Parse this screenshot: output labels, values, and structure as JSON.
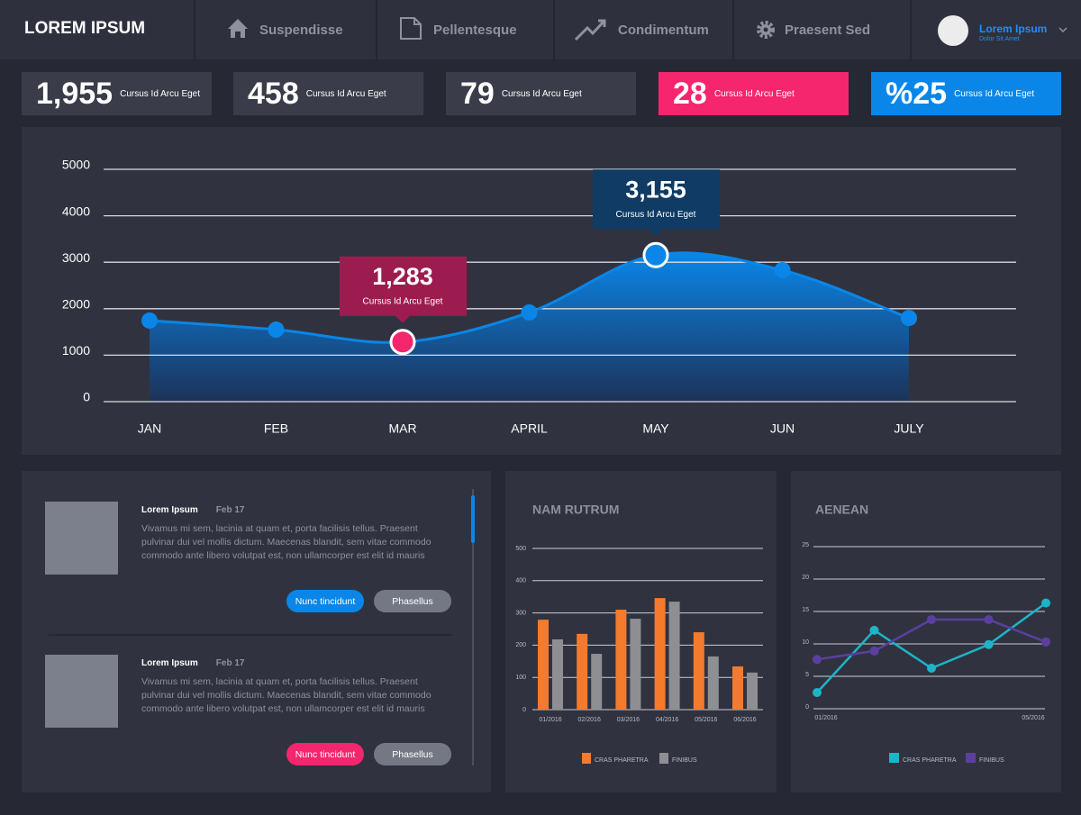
{
  "header": {
    "title": "LOREM IPSUM",
    "nav": [
      "Suspendisse",
      "Pellentesque",
      "Condimentum",
      "Praesent Sed"
    ],
    "user": {
      "name": "Lorem Ipsum",
      "subtitle": "Dolor Sit Amet"
    }
  },
  "stats": [
    {
      "value": "1,955",
      "label": "Cursus Id Arcu Eget"
    },
    {
      "value": "458",
      "label": "Cursus Id Arcu Eget"
    },
    {
      "value": "79",
      "label": "Cursus Id Arcu Eget"
    },
    {
      "value": "28",
      "label": "Cursus Id Arcu Eget"
    },
    {
      "value": "%25",
      "label": "Cursus Id Arcu Eget"
    }
  ],
  "chart_data": [
    {
      "type": "area",
      "categories": [
        "JAN",
        "FEB",
        "MAR",
        "APRIL",
        "MAY",
        "JUN",
        "JULY"
      ],
      "values": [
        1745,
        1550,
        1283,
        1920,
        3155,
        2830,
        1800
      ],
      "value_labels": [
        null,
        null,
        "1,283",
        null,
        "3,155",
        null,
        null
      ],
      "callout_text": "Cursus Id Arcu Eget",
      "callout_colors": [
        null,
        null,
        "#9c1c50",
        null,
        "#0f3b64",
        null,
        null
      ],
      "point_colors": [
        "#0a86e8",
        "#0a86e8",
        "#f5256e",
        "#0a86e8",
        "#0a86e8",
        "#0a86e8",
        "#0a86e8"
      ],
      "color": "#0a86e8",
      "ylim": [
        0,
        5000
      ],
      "yticks": [
        0,
        1000,
        2000,
        3000,
        4000,
        5000
      ],
      "grid": true
    },
    {
      "type": "bar",
      "title": "NAM RUTRUM",
      "categories": [
        "01/2016",
        "02/2016",
        "03/2016",
        "04/2016",
        "05/2016",
        "06/2016"
      ],
      "series": [
        {
          "name": "CRAS PHARETRA",
          "color": "#f47a2e",
          "values": [
            279,
            235,
            310,
            346,
            240,
            134
          ]
        },
        {
          "name": "FINIBUS",
          "color": "#8e8e93",
          "values": [
            218,
            173,
            282,
            335,
            165,
            115
          ]
        }
      ],
      "ylim": [
        0,
        500
      ],
      "yticks": [
        0,
        100,
        200,
        300,
        400,
        500
      ],
      "grid": true
    },
    {
      "type": "line",
      "title": "AENEAN",
      "categories": [
        "01/2016",
        null,
        null,
        null,
        "05/2016"
      ],
      "series": [
        {
          "name": "CRAS PHARETRA",
          "color": "#1db4c8",
          "values": [
            2.5,
            12.1,
            6.25,
            9.9,
            16.3
          ]
        },
        {
          "name": "FINIBUS",
          "color": "#5b3fa0",
          "values": [
            7.6,
            8.9,
            13.75,
            13.75,
            10.3
          ]
        }
      ],
      "ylim": [
        0,
        25
      ],
      "yticks": [
        0,
        5,
        10,
        15,
        20,
        25
      ],
      "grid": true
    }
  ],
  "feed": {
    "items": [
      {
        "title": "Lorem Ipsum",
        "date": "Feb 17",
        "body": "Vivamus mi sem, lacinia at quam et, porta facilisis tellus. Praesent pulvinar dui vel mollis dictum. Maecenas blandit, sem vitae commodo commodo  ante libero volutpat est, non ullamcorper est elit id mauris",
        "buttons": [
          "Nunc tincidunt",
          "Phasellus"
        ]
      },
      {
        "title": "Lorem Ipsum",
        "date": "Feb 17",
        "body": "Vivamus mi sem, lacinia at quam et, porta facilisis tellus. Praesent pulvinar dui vel mollis dictum. Maecenas blandit, sem vitae commodo commodo  ante libero volutpat est, non ullamcorper est elit id mauris",
        "buttons": [
          "Nunc tincidunt",
          "Phasellus"
        ]
      }
    ]
  }
}
